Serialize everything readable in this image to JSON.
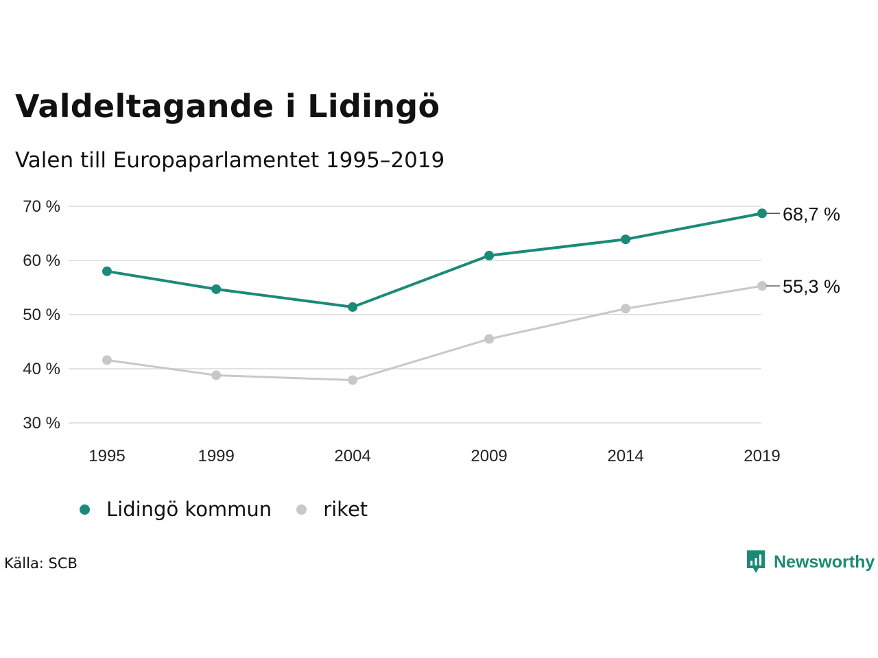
{
  "title": "Valdeltagande i Lidingö",
  "subtitle": "Valen till Europaparlamentet 1995–2019",
  "source": "Källa: SCB",
  "brand": "Newsworthy",
  "colors": {
    "lidingo": "#1b8a78",
    "riket": "#c8c8c8",
    "brand": "#1b8a74"
  },
  "chart_data": {
    "type": "line",
    "categories": [
      "1995",
      "1999",
      "2004",
      "2009",
      "2014",
      "2019"
    ],
    "x": [
      1995,
      1999,
      2004,
      2009,
      2014,
      2019
    ],
    "ylim": [
      30,
      70
    ],
    "yticks": [
      30,
      40,
      50,
      60,
      70
    ],
    "ytick_labels": [
      "30 %",
      "40 %",
      "50 %",
      "60 %",
      "70 %"
    ],
    "grid": true,
    "legend_position": "bottom-left",
    "series": [
      {
        "name": "Lidingö kommun",
        "color": "#1b8a78",
        "values": [
          58.0,
          54.7,
          51.4,
          60.9,
          63.9,
          68.7
        ],
        "end_label": "68,7 %"
      },
      {
        "name": "riket",
        "color": "#c8c8c8",
        "values": [
          41.6,
          38.8,
          37.9,
          45.5,
          51.1,
          55.3
        ],
        "end_label": "55,3 %"
      }
    ]
  }
}
